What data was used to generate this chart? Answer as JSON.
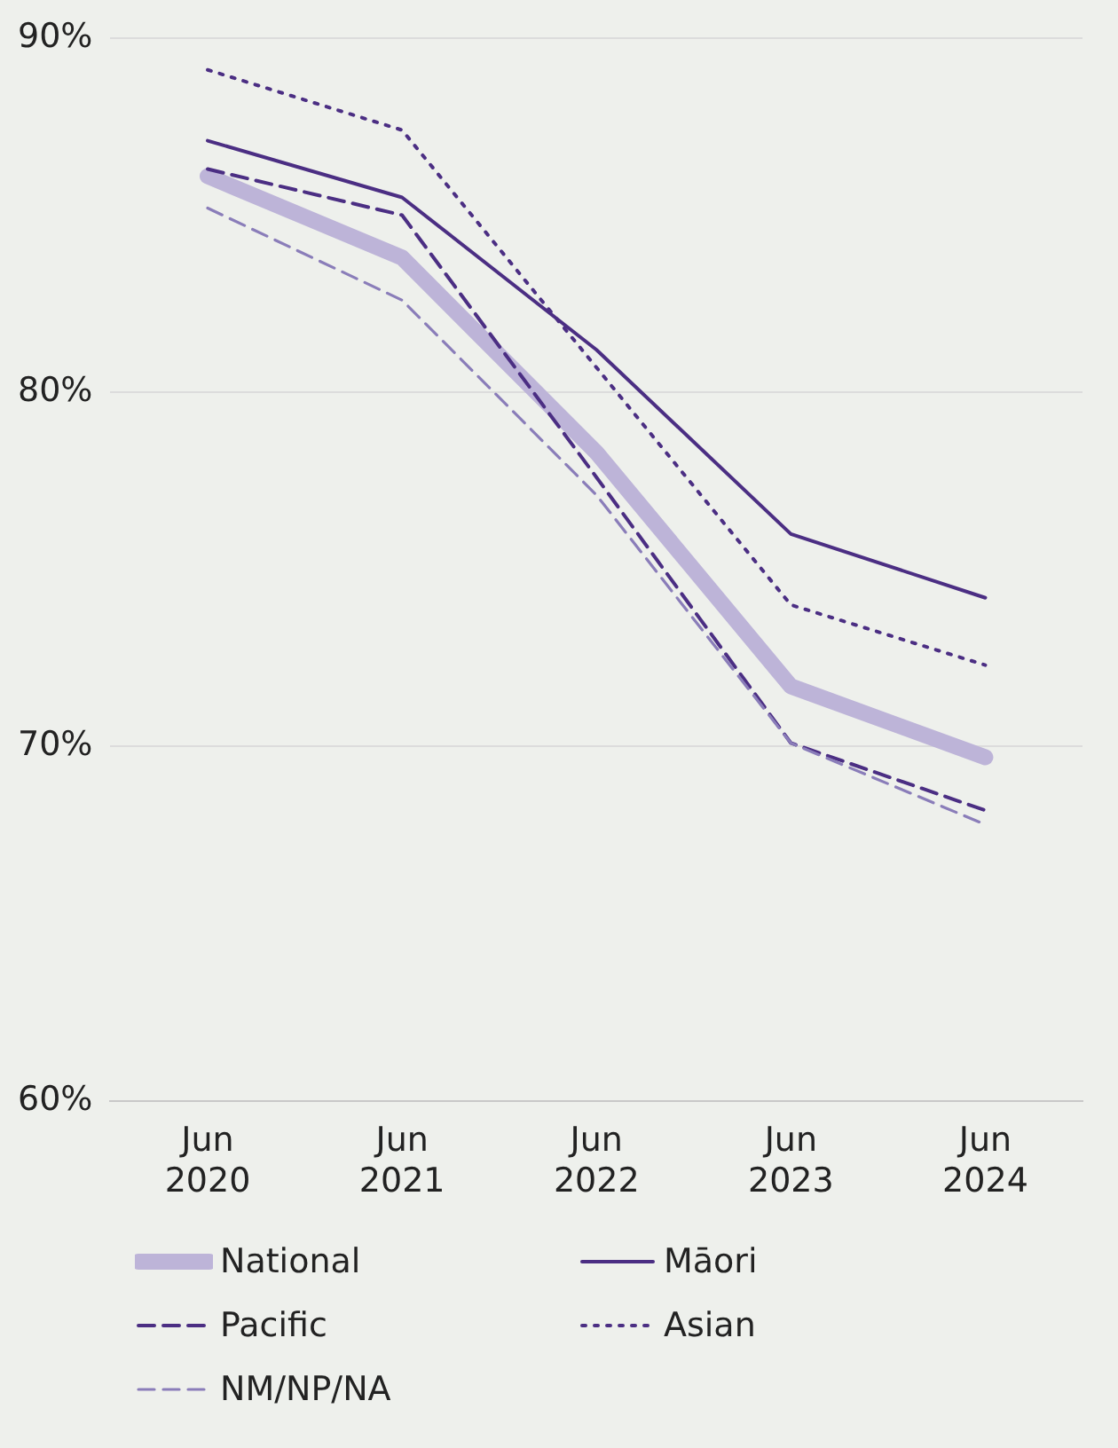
{
  "chart_data": {
    "type": "line",
    "categories": [
      "Jun 2020",
      "Jun 2021",
      "Jun 2022",
      "Jun 2023",
      "Jun 2024"
    ],
    "series": [
      {
        "name": "National",
        "color": "#bdb4d8",
        "line_style": "solid",
        "values": [
          86.1,
          83.8,
          78.3,
          71.7,
          69.7
        ]
      },
      {
        "name": "Māori",
        "color": "#4b2e83",
        "line_style": "solid",
        "values": [
          87.1,
          85.5,
          81.2,
          76.0,
          74.2
        ]
      },
      {
        "name": "Pacific",
        "color": "#4b2e83",
        "line_style": "dashed",
        "values": [
          86.3,
          85.0,
          77.6,
          70.1,
          68.2
        ]
      },
      {
        "name": "Asian",
        "color": "#4b2e83",
        "line_style": "dotted",
        "values": [
          89.1,
          87.4,
          80.7,
          74.0,
          72.3
        ]
      },
      {
        "name": "NM/NP/NA",
        "color": "#8a7db9",
        "line_style": "dashed",
        "values": [
          85.2,
          82.6,
          77.1,
          70.1,
          67.8
        ]
      }
    ],
    "ylim": [
      60,
      90
    ],
    "yticks": [
      {
        "value": 60,
        "label": "60%"
      },
      {
        "value": 70,
        "label": "70%"
      },
      {
        "value": 80,
        "label": "80%"
      },
      {
        "value": 90,
        "label": "90%"
      }
    ],
    "grid": "y",
    "legend": "bottom",
    "marker": "none"
  }
}
